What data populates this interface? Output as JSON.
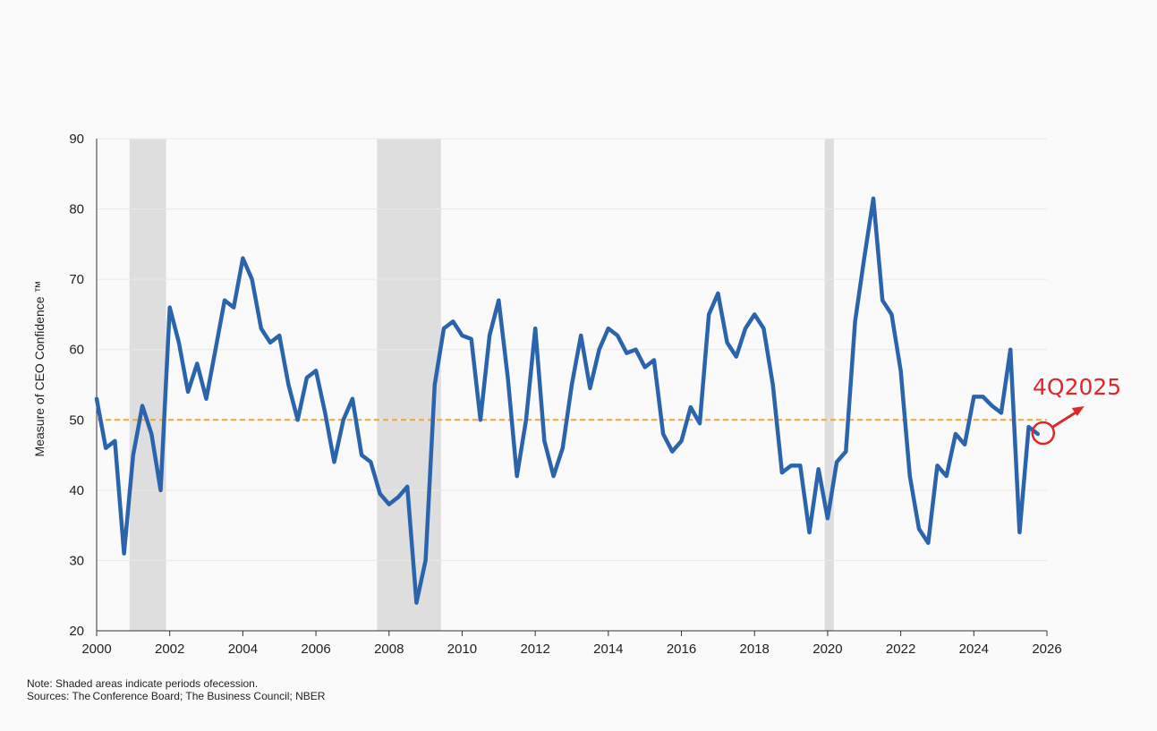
{
  "chart_data": {
    "type": "line",
    "title": "",
    "xlabel": "",
    "ylabel": "Measure of CEO Confidence ™",
    "xlim": [
      2000,
      2026
    ],
    "ylim": [
      20,
      90
    ],
    "yticks": [
      20,
      30,
      40,
      50,
      60,
      70,
      80,
      90
    ],
    "xticks": [
      2000,
      2002,
      2004,
      2006,
      2008,
      2010,
      2012,
      2014,
      2016,
      2018,
      2020,
      2022,
      2024,
      2026
    ],
    "reference_line": {
      "y": 50,
      "color": "#f0a830",
      "style": "dashed"
    },
    "recessions": [
      {
        "start": 2000.9,
        "end": 2001.9
      },
      {
        "start": 2007.67,
        "end": 2009.42
      },
      {
        "start": 2019.92,
        "end": 2020.17
      }
    ],
    "series": [
      {
        "name": "CEO Confidence",
        "color": "#2a64ad",
        "x": [
          2000.0,
          2000.25,
          2000.5,
          2000.75,
          2001.0,
          2001.25,
          2001.5,
          2001.75,
          2002.0,
          2002.25,
          2002.5,
          2002.75,
          2003.0,
          2003.25,
          2003.5,
          2003.75,
          2004.0,
          2004.25,
          2004.5,
          2004.75,
          2005.0,
          2005.25,
          2005.5,
          2005.75,
          2006.0,
          2006.25,
          2006.5,
          2006.75,
          2007.0,
          2007.25,
          2007.5,
          2007.75,
          2008.0,
          2008.25,
          2008.5,
          2008.75,
          2009.0,
          2009.25,
          2009.5,
          2009.75,
          2010.0,
          2010.25,
          2010.5,
          2010.75,
          2011.0,
          2011.25,
          2011.5,
          2011.75,
          2012.0,
          2012.25,
          2012.5,
          2012.75,
          2013.0,
          2013.25,
          2013.5,
          2013.75,
          2014.0,
          2014.25,
          2014.5,
          2014.75,
          2015.0,
          2015.25,
          2015.5,
          2015.75,
          2016.0,
          2016.25,
          2016.5,
          2016.75,
          2017.0,
          2017.25,
          2017.5,
          2017.75,
          2018.0,
          2018.25,
          2018.5,
          2018.75,
          2019.0,
          2019.25,
          2019.5,
          2019.75,
          2020.0,
          2020.25,
          2020.5,
          2020.75,
          2021.0,
          2021.25,
          2021.5,
          2021.75,
          2022.0,
          2022.25,
          2022.5,
          2022.75,
          2023.0,
          2023.25,
          2023.5,
          2023.75,
          2024.0,
          2024.25,
          2024.5,
          2024.75,
          2025.0,
          2025.25,
          2025.5,
          2025.75
        ],
        "y": [
          53,
          46,
          47,
          31,
          45,
          52,
          48,
          40,
          66,
          61,
          54,
          58,
          53,
          60,
          67,
          66,
          73,
          70,
          63,
          61,
          62,
          55,
          50,
          56,
          57,
          51,
          44,
          50,
          53,
          45,
          44,
          39.5,
          38,
          39,
          40.5,
          24,
          30,
          55,
          63,
          64,
          62,
          61.5,
          50,
          62,
          67,
          56,
          42,
          50,
          63,
          47,
          42,
          46,
          55,
          62,
          54.5,
          60,
          63,
          62,
          59.5,
          60,
          57.5,
          58.5,
          48,
          45.5,
          47,
          51.8,
          49.5,
          65,
          68,
          61,
          59,
          63,
          65,
          63,
          55,
          42.5,
          43.5,
          43.5,
          34,
          43,
          36,
          44,
          45.5,
          64,
          73,
          81.5,
          67,
          65,
          57,
          42,
          34.5,
          32.5,
          43.5,
          42,
          48,
          46.5,
          53.3,
          53.3,
          52,
          51,
          60,
          34,
          49,
          48
        ]
      }
    ],
    "annotation": {
      "text": "4Q2025",
      "x": 2025.75,
      "y": 48
    }
  },
  "footnotes": {
    "note": "Note: Shaded areas indicate periods ofecession.",
    "sources": "Sources: The Conference Board; The Business Council; NBER"
  }
}
